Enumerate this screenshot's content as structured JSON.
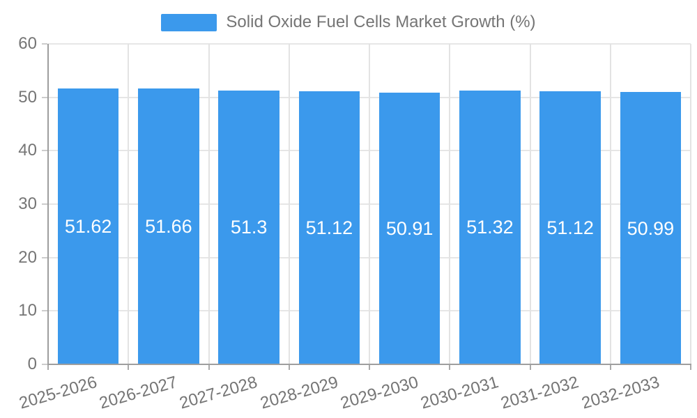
{
  "chart_data": {
    "type": "bar",
    "title": "Solid Oxide Fuel Cells Market Growth (%)",
    "legend_position": "top",
    "categories": [
      "2025-2026",
      "2026-2027",
      "2027-2028",
      "2028-2029",
      "2029-2030",
      "2030-2031",
      "2031-2032",
      "2032-2033"
    ],
    "values": [
      51.62,
      51.66,
      51.3,
      51.12,
      50.91,
      51.32,
      51.12,
      50.99
    ],
    "value_labels": [
      "51.62",
      "51.66",
      "51.3",
      "51.12",
      "50.91",
      "51.32",
      "51.12",
      "50.99"
    ],
    "xlabel": "",
    "ylabel": "",
    "ylim": [
      0,
      60
    ],
    "yticks": [
      0,
      10,
      20,
      30,
      40,
      50,
      60
    ],
    "grid": true,
    "colors": {
      "bar": "#3b99ec",
      "bar_label": "#ffffff",
      "axis_text": "#757575",
      "grid_line": "#e6e6e6",
      "axis_line": "#9e9e9e"
    }
  }
}
